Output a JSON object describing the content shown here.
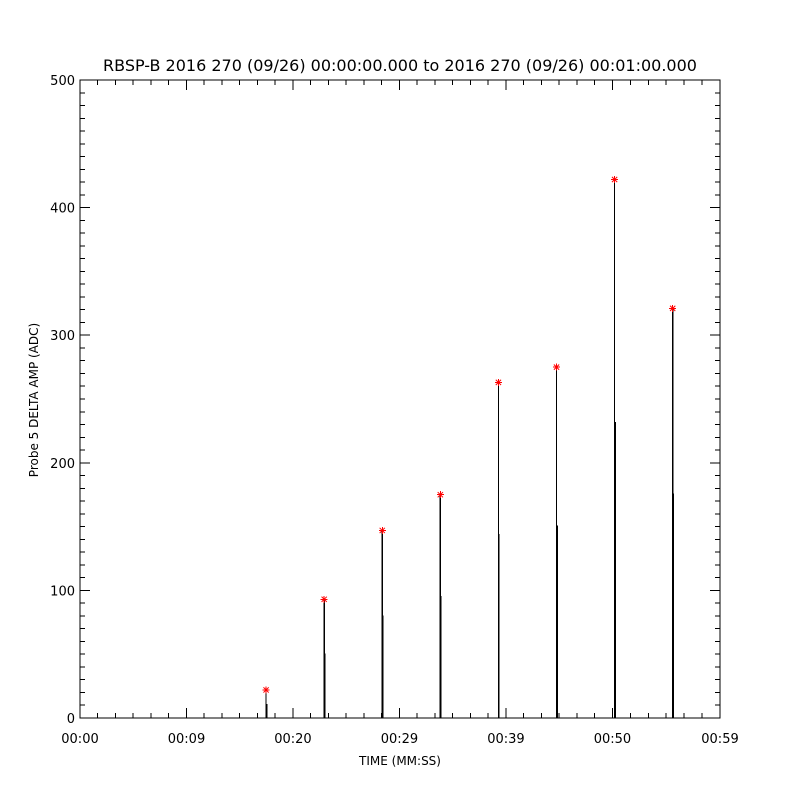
{
  "chart_data": {
    "type": "line",
    "title": "RBSP-B 2016 270 (09/26) 00:00:00.000 to 2016 270 (09/26) 00:01:00.000",
    "xlabel": "TIME (MM:SS)",
    "ylabel": "Probe 5 DELTA AMP (ADC)",
    "xlim": [
      0,
      59.5
    ],
    "ylim": [
      0,
      500
    ],
    "x_ticks": [
      0,
      9.9,
      19.8,
      29.7,
      39.6,
      49.5,
      59.5
    ],
    "x_tick_labels": [
      "00:00",
      "00:09",
      "00:20",
      "00:29",
      "00:39",
      "00:50",
      "00:59"
    ],
    "y_ticks": [
      0,
      100,
      200,
      300,
      400,
      500
    ],
    "y_tick_labels": [
      "0",
      "100",
      "200",
      "300",
      "400",
      "500"
    ],
    "grid": false,
    "series": [
      {
        "style": "spikes",
        "color": "#000000",
        "peaks": [
          {
            "x": 17.3,
            "y": 20
          },
          {
            "x": 22.7,
            "y": 92
          },
          {
            "x": 28.1,
            "y": 146
          },
          {
            "x": 33.5,
            "y": 174
          },
          {
            "x": 38.9,
            "y": 262
          },
          {
            "x": 44.3,
            "y": 274
          },
          {
            "x": 49.7,
            "y": 422
          },
          {
            "x": 55.1,
            "y": 320
          }
        ]
      },
      {
        "style": "markers",
        "marker": "asterisk",
        "color": "#ff0000",
        "x": [
          17.3,
          22.7,
          28.1,
          33.5,
          38.9,
          44.3,
          49.7,
          55.1
        ],
        "y": [
          22,
          93,
          147,
          175,
          263,
          275,
          422,
          321
        ]
      }
    ]
  }
}
